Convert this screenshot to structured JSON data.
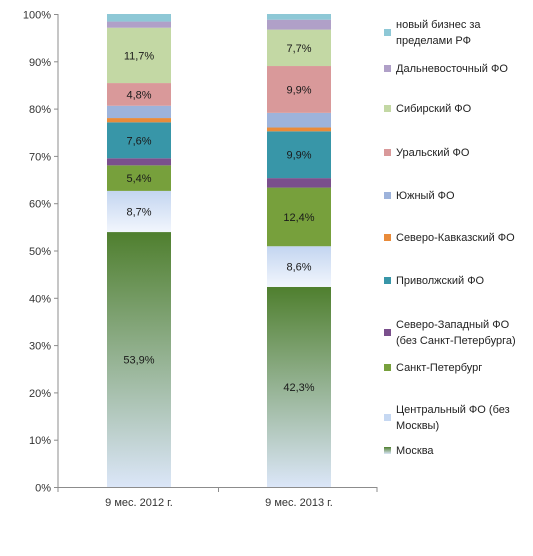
{
  "chart_data": {
    "type": "bar",
    "stacked": true,
    "normalized": true,
    "categories": [
      "9 мес. 2012 г.",
      "9 мес. 2013 г."
    ],
    "y_ticks": [
      "0%",
      "10%",
      "20%",
      "30%",
      "40%",
      "50%",
      "60%",
      "70%",
      "80%",
      "90%",
      "100%"
    ],
    "ylim": [
      0,
      100
    ],
    "grid": false,
    "legend_position": "right",
    "series": [
      {
        "name": "Москва",
        "values": [
          53.9,
          42.3
        ],
        "labels": [
          "53,9%",
          "42,3%"
        ],
        "color": "#C6D8F2",
        "gradient": [
          "#4f7f2e",
          "#dbe6f8"
        ]
      },
      {
        "name": "Центральный ФО (без Москвы)",
        "values": [
          8.7,
          8.6
        ],
        "labels": [
          "8,7%",
          "8,6%"
        ],
        "color": "#C6D8F2",
        "gradient": [
          "#c3d5f0",
          "#f2f6fd"
        ]
      },
      {
        "name": "Санкт-Петербург",
        "values": [
          5.4,
          12.4
        ],
        "labels": [
          "5,4%",
          "12,4%"
        ],
        "color": "#77A03C"
      },
      {
        "name": "Северо-Западный ФО (без Санкт-Петербурга)",
        "values": [
          1.5,
          2.0
        ],
        "labels": [
          "",
          ""
        ],
        "color": "#7A4F8C"
      },
      {
        "name": "Приволжский ФО",
        "values": [
          7.6,
          9.9
        ],
        "labels": [
          "7,6%",
          "9,9%"
        ],
        "color": "#3896A8"
      },
      {
        "name": "Северо-Кавказский ФО",
        "values": [
          0.9,
          0.8
        ],
        "labels": [
          "",
          ""
        ],
        "color": "#E98B3A"
      },
      {
        "name": "Южный ФО",
        "values": [
          2.6,
          3.1
        ],
        "labels": [
          "",
          ""
        ],
        "color": "#9DB3DB"
      },
      {
        "name": "Уральский ФО",
        "values": [
          4.8,
          9.9
        ],
        "labels": [
          "4,8%",
          "9,9%"
        ],
        "color": "#D9999A"
      },
      {
        "name": "Сибирский ФО",
        "values": [
          11.7,
          7.7
        ],
        "labels": [
          "11,7%",
          "7,7%"
        ],
        "color": "#C3D8A4"
      },
      {
        "name": "Дальневосточный ФО",
        "values": [
          1.3,
          2.1
        ],
        "labels": [
          "",
          ""
        ],
        "color": "#B0A0C8"
      },
      {
        "name": "новый бизнес за пределами РФ",
        "values": [
          1.6,
          1.2
        ],
        "labels": [
          "",
          ""
        ],
        "color": "#8EC8D6"
      }
    ],
    "legend": [
      {
        "lines": [
          "новый бизнес за",
          "пределами РФ"
        ],
        "color": "#8EC8D6"
      },
      {
        "lines": [
          "Дальневосточный ФО"
        ],
        "color": "#B0A0C8"
      },
      {
        "lines": [
          "Сибирский ФО"
        ],
        "color": "#C3D8A4"
      },
      {
        "lines": [
          "Уральский ФО"
        ],
        "color": "#D9999A"
      },
      {
        "lines": [
          "Южный ФО"
        ],
        "color": "#9DB3DB"
      },
      {
        "lines": [
          "Северо-Кавказский ФО"
        ],
        "color": "#E98B3A"
      },
      {
        "lines": [
          "Приволжский ФО"
        ],
        "color": "#3896A8"
      },
      {
        "lines": [
          "Северо-Западный ФО",
          "(без Санкт-Петербурга)"
        ],
        "color": "#7A4F8C"
      },
      {
        "lines": [
          "Санкт-Петербург"
        ],
        "color": "#77A03C"
      },
      {
        "lines": [
          "Центральный ФО (без",
          "Москвы)"
        ],
        "color": "#C6D8F2"
      },
      {
        "lines": [
          "Москва"
        ],
        "color": "#A9C48A",
        "gradient": [
          "#4f7f2e",
          "#dbe6f8"
        ]
      }
    ]
  }
}
